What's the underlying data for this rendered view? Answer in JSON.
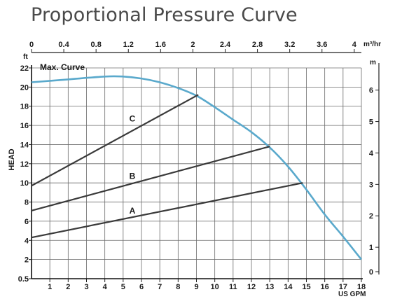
{
  "chart_data": {
    "type": "line",
    "title": "Proportional Pressure Curve",
    "ylabel": "HEAD",
    "x_bottom": {
      "unit": "US GPM",
      "ticks": [
        1,
        2,
        3,
        4,
        5,
        6,
        7,
        8,
        9,
        10,
        11,
        12,
        13,
        14,
        15,
        16,
        17,
        18
      ],
      "range": [
        0,
        18
      ]
    },
    "x_top": {
      "unit": "m³/hr",
      "ticks": [
        "0",
        "0.4",
        "0.8",
        "1.2",
        "1.6",
        "2",
        "2.4",
        "2.8",
        "3.2",
        "3.6",
        "4"
      ]
    },
    "y_left": {
      "unit": "ft",
      "ticks": [
        "0.5",
        "2",
        "4",
        "6",
        "8",
        "10",
        "12",
        "14",
        "16",
        "18",
        "20",
        "22"
      ],
      "range": [
        0.5,
        22
      ]
    },
    "y_right": {
      "unit": "m",
      "ticks": [
        "0",
        "1",
        "2",
        "3",
        "4",
        "5",
        "6"
      ]
    },
    "grid": true,
    "max_curve": {
      "name": "Max. Curve",
      "color": "#5aa9cc",
      "x": [
        0,
        2,
        4,
        5,
        6,
        7,
        8,
        9,
        10,
        11,
        12,
        13,
        14,
        15,
        16,
        17,
        18
      ],
      "y": [
        20.5,
        20.8,
        21.1,
        21.1,
        20.9,
        20.5,
        19.9,
        19.1,
        17.9,
        16.6,
        15.3,
        13.7,
        11.7,
        9.3,
        6.7,
        4.4,
        2.0
      ]
    },
    "series": [
      {
        "name": "A",
        "color": "#3a3a3a",
        "x": [
          0,
          14.8
        ],
        "y": [
          4.3,
          10.0
        ],
        "label_at": [
          5.5,
          6.8
        ]
      },
      {
        "name": "B",
        "color": "#3a3a3a",
        "x": [
          0,
          13.0
        ],
        "y": [
          7.1,
          13.8
        ],
        "label_at": [
          5.5,
          10.4
        ]
      },
      {
        "name": "C",
        "color": "#3a3a3a",
        "x": [
          0,
          9.1
        ],
        "y": [
          9.7,
          19.2
        ],
        "label_at": [
          5.5,
          16.4
        ]
      }
    ]
  }
}
